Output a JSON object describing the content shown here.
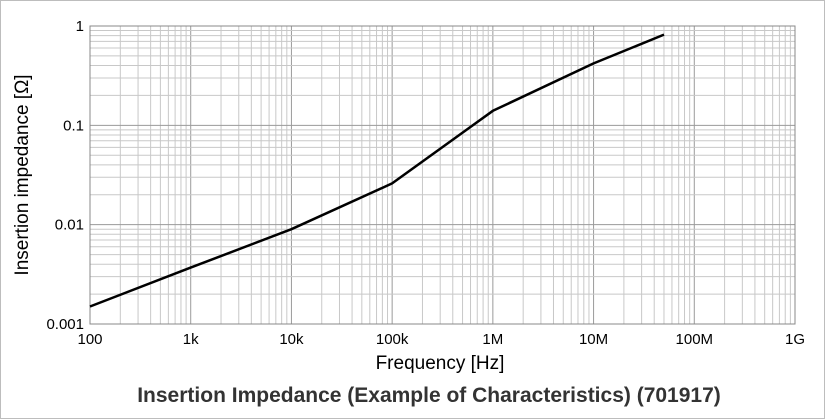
{
  "chart_data": {
    "type": "line",
    "title": "Insertion Impedance (Example of Characteristics) (701917)",
    "xlabel": "Frequency [Hz]",
    "ylabel": "Insertion impedance [Ω]",
    "xscale": "log",
    "yscale": "log",
    "xlim": [
      100,
      1000000000
    ],
    "ylim": [
      0.001,
      1
    ],
    "grid": true,
    "x_ticks": [
      {
        "value": 100,
        "label": "100"
      },
      {
        "value": 1000,
        "label": "1k"
      },
      {
        "value": 10000,
        "label": "10k"
      },
      {
        "value": 100000,
        "label": "100k"
      },
      {
        "value": 1000000,
        "label": "1M"
      },
      {
        "value": 10000000,
        "label": "10M"
      },
      {
        "value": 100000000,
        "label": "100M"
      },
      {
        "value": 1000000000,
        "label": "1G"
      }
    ],
    "y_ticks": [
      {
        "value": 0.001,
        "label": "0.001"
      },
      {
        "value": 0.01,
        "label": "0.01"
      },
      {
        "value": 0.1,
        "label": "0.1"
      },
      {
        "value": 1,
        "label": "1"
      }
    ],
    "series": [
      {
        "color": "#000000",
        "x": [
          100,
          1000,
          10000,
          100000,
          1000000,
          10000000,
          50000000
        ],
        "y": [
          0.0015,
          0.0037,
          0.009,
          0.026,
          0.14,
          0.42,
          0.82
        ]
      }
    ]
  }
}
